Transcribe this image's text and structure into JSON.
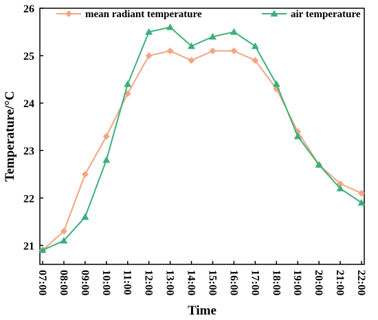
{
  "chart_data": {
    "type": "line",
    "title": "",
    "xlabel": "Time",
    "ylabel": "Temperature/°C",
    "categories": [
      "07:00",
      "08:00",
      "09:00",
      "10:00",
      "11:00",
      "12:00",
      "13:00",
      "14:00",
      "15:00",
      "16:00",
      "17:00",
      "18:00",
      "19:00",
      "20:00",
      "21:00",
      "22:00"
    ],
    "ylim": [
      20.6,
      26
    ],
    "yticks": [
      21,
      22,
      23,
      24,
      25,
      26
    ],
    "grid": false,
    "legend_position": "top",
    "series": [
      {
        "name": "mean radiant temperature",
        "color": "#F4A582",
        "marker": "diamond",
        "values": [
          20.9,
          21.3,
          22.5,
          23.3,
          24.2,
          25.0,
          25.1,
          24.9,
          25.1,
          25.1,
          24.9,
          24.3,
          23.4,
          22.7,
          22.3,
          22.1
        ]
      },
      {
        "name": "air temperature",
        "color": "#3CB07A",
        "marker": "triangle",
        "values": [
          20.9,
          21.1,
          21.6,
          22.8,
          24.4,
          25.5,
          25.6,
          25.2,
          25.4,
          25.5,
          25.2,
          24.4,
          23.3,
          22.7,
          22.2,
          21.9
        ]
      }
    ]
  }
}
